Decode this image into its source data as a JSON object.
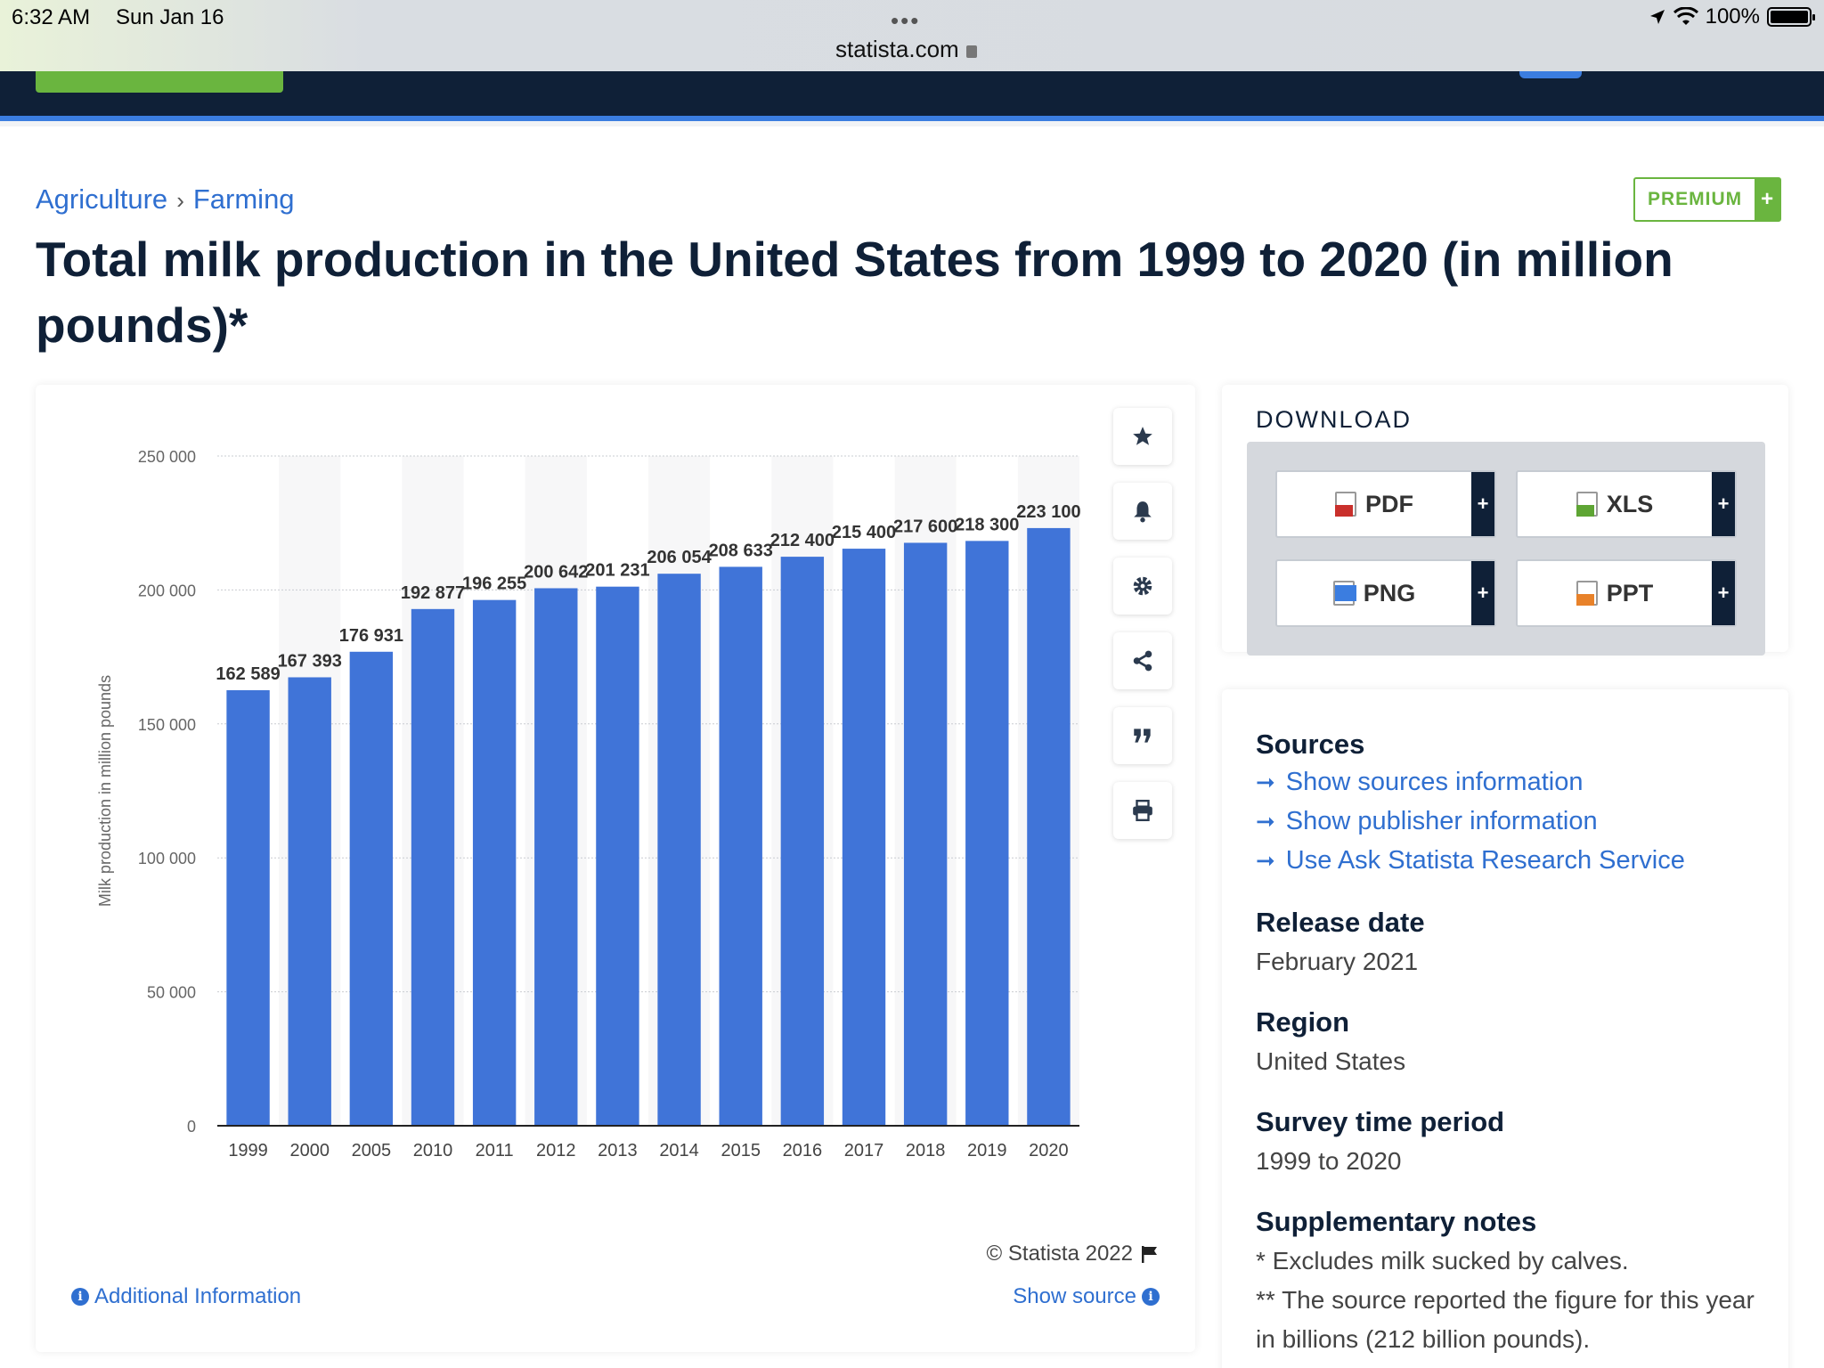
{
  "status": {
    "time": "6:32 AM",
    "date": "Sun Jan 16",
    "url": "statista.com",
    "battery": "100%"
  },
  "breadcrumb": {
    "items": [
      "Agriculture",
      "Farming"
    ]
  },
  "premium_label": "PREMIUM",
  "title": "Total milk production in the United States from 1999 to 2020 (in million pounds)*",
  "chart_data": {
    "type": "bar",
    "categories": [
      "1999",
      "2000",
      "2005",
      "2010",
      "2011",
      "2012",
      "2013",
      "2014",
      "2015",
      "2016",
      "2017",
      "2018",
      "2019",
      "2020"
    ],
    "values": [
      162589,
      167393,
      176931,
      192877,
      196255,
      200642,
      201231,
      206054,
      208633,
      212400,
      215400,
      217600,
      218300,
      223100
    ],
    "value_labels": [
      "162 589",
      "167 393",
      "176 931",
      "192 877",
      "196 255",
      "200 642",
      "201 231",
      "206 054",
      "208 633",
      "212 400",
      "215 400",
      "217 600",
      "218 300",
      "223 100"
    ],
    "ylabel": "Milk production in million pounds",
    "xlabel": "",
    "ylim": [
      0,
      250000
    ],
    "yticks": [
      0,
      50000,
      100000,
      150000,
      200000,
      250000
    ],
    "ytick_labels": [
      "0",
      "50 000",
      "100 000",
      "150 000",
      "200 000",
      "250 000"
    ],
    "bar_color": "#4074d8",
    "grid": true
  },
  "chart_footer": {
    "copyright": "© Statista 2022",
    "additional_info": "Additional Information",
    "show_source": "Show source"
  },
  "download": {
    "title": "DOWNLOAD",
    "buttons": [
      {
        "label": "PDF",
        "icon": "pdf-file-icon",
        "color": "#c9302c"
      },
      {
        "label": "XLS",
        "icon": "xls-file-icon",
        "color": "#5ea534"
      },
      {
        "label": "PNG",
        "icon": "png-file-icon",
        "color": "#3b7de0"
      },
      {
        "label": "PPT",
        "icon": "ppt-file-icon",
        "color": "#e8822a"
      }
    ],
    "plus": "+"
  },
  "info": {
    "sources_heading": "Sources",
    "links": [
      "Show sources information",
      "Show publisher information",
      "Use Ask Statista Research Service"
    ],
    "release_heading": "Release date",
    "release_value": "February 2021",
    "region_heading": "Region",
    "region_value": "United States",
    "survey_heading": "Survey time period",
    "survey_value": "1999 to 2020",
    "notes_heading": "Supplementary notes",
    "notes": [
      "* Excludes milk sucked by calves.",
      "** The source reported the figure for this year in billions (212 billion pounds)."
    ]
  }
}
